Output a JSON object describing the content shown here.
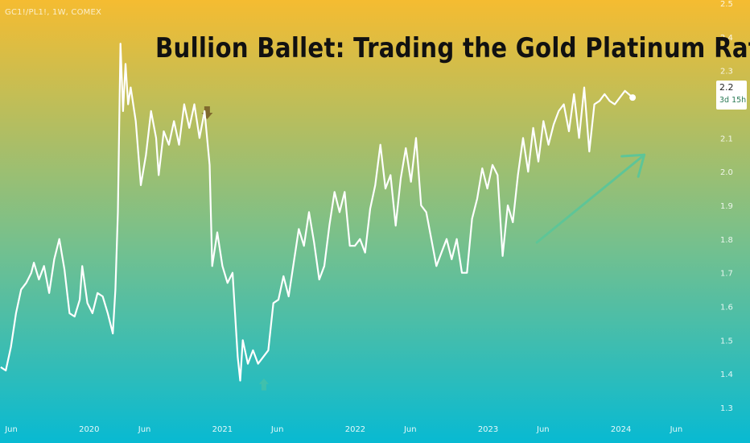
{
  "symbol": "GC1!/PL1!, 1W, COMEX",
  "title": "Bullion Ballet: Trading the Gold Platinum Ratio",
  "price_label": {
    "value": "2.2",
    "countdown": "3d 15h"
  },
  "colors": {
    "bg_top": "#f5bc31",
    "bg_mid": "#76c08d",
    "bg_bottom": "#08bad2",
    "line": "#ffffff",
    "arrow_up": "#5ec597",
    "arrow_down_marker": "#806a2e",
    "arrow_up_marker": "#5ec597"
  },
  "chart_data": {
    "type": "line",
    "title": "Bullion Ballet: Trading the Gold Platinum Ratio",
    "xlabel": "",
    "ylabel": "",
    "ylim": [
      1.3,
      2.5
    ],
    "yticks": [
      1.3,
      1.4,
      1.5,
      1.6,
      1.7,
      1.8,
      1.9,
      2.0,
      2.1,
      2.2,
      2.3,
      2.4,
      2.5
    ],
    "ytick_labels": [
      "1.3",
      "1.4",
      "1.5",
      "1.6",
      "1.7",
      "1.8",
      "1.9",
      "2.0",
      "2.1",
      "2.2",
      "2.3",
      "2.4",
      "2.5"
    ],
    "xlim": [
      "2019-05-01",
      "2024-09-01"
    ],
    "xticks": [
      {
        "date": "2019-06-01",
        "label": "Jun"
      },
      {
        "date": "2020-01-01",
        "label": "2020"
      },
      {
        "date": "2020-06-01",
        "label": "Jun"
      },
      {
        "date": "2021-01-01",
        "label": "2021"
      },
      {
        "date": "2021-06-01",
        "label": "Jun"
      },
      {
        "date": "2022-01-01",
        "label": "2022"
      },
      {
        "date": "2022-06-01",
        "label": "Jun"
      },
      {
        "date": "2023-01-01",
        "label": "2023"
      },
      {
        "date": "2023-06-01",
        "label": "Jun"
      },
      {
        "date": "2024-01-01",
        "label": "2024"
      },
      {
        "date": "2024-06-01",
        "label": "Jun"
      }
    ],
    "grid": false,
    "series": [
      {
        "name": "",
        "points": [
          [
            "2019-05-03",
            1.42
          ],
          [
            "2019-05-17",
            1.41
          ],
          [
            "2019-05-31",
            1.48
          ],
          [
            "2019-06-14",
            1.58
          ],
          [
            "2019-06-28",
            1.65
          ],
          [
            "2019-07-12",
            1.67
          ],
          [
            "2019-07-26",
            1.7
          ],
          [
            "2019-08-02",
            1.73
          ],
          [
            "2019-08-16",
            1.68
          ],
          [
            "2019-08-30",
            1.72
          ],
          [
            "2019-09-13",
            1.64
          ],
          [
            "2019-09-27",
            1.74
          ],
          [
            "2019-10-11",
            1.8
          ],
          [
            "2019-10-25",
            1.71
          ],
          [
            "2019-11-08",
            1.58
          ],
          [
            "2019-11-22",
            1.57
          ],
          [
            "2019-12-06",
            1.62
          ],
          [
            "2019-12-13",
            1.72
          ],
          [
            "2019-12-27",
            1.61
          ],
          [
            "2020-01-10",
            1.58
          ],
          [
            "2020-01-24",
            1.64
          ],
          [
            "2020-02-07",
            1.63
          ],
          [
            "2020-02-21",
            1.58
          ],
          [
            "2020-03-06",
            1.52
          ],
          [
            "2020-03-13",
            1.65
          ],
          [
            "2020-03-20",
            1.88
          ],
          [
            "2020-03-27",
            2.38
          ],
          [
            "2020-04-03",
            2.18
          ],
          [
            "2020-04-10",
            2.32
          ],
          [
            "2020-04-17",
            2.2
          ],
          [
            "2020-04-24",
            2.25
          ],
          [
            "2020-05-08",
            2.15
          ],
          [
            "2020-05-22",
            1.96
          ],
          [
            "2020-06-05",
            2.05
          ],
          [
            "2020-06-19",
            2.18
          ],
          [
            "2020-07-03",
            2.1
          ],
          [
            "2020-07-10",
            1.99
          ],
          [
            "2020-07-24",
            2.12
          ],
          [
            "2020-08-07",
            2.08
          ],
          [
            "2020-08-21",
            2.15
          ],
          [
            "2020-09-04",
            2.08
          ],
          [
            "2020-09-18",
            2.2
          ],
          [
            "2020-10-02",
            2.13
          ],
          [
            "2020-10-16",
            2.2
          ],
          [
            "2020-10-30",
            2.1
          ],
          [
            "2020-11-13",
            2.18
          ],
          [
            "2020-11-27",
            2.02
          ],
          [
            "2020-12-04",
            1.72
          ],
          [
            "2020-12-18",
            1.82
          ],
          [
            "2021-01-01",
            1.72
          ],
          [
            "2021-01-15",
            1.67
          ],
          [
            "2021-01-29",
            1.7
          ],
          [
            "2021-02-12",
            1.45
          ],
          [
            "2021-02-19",
            1.38
          ],
          [
            "2021-02-26",
            1.5
          ],
          [
            "2021-03-12",
            1.43
          ],
          [
            "2021-03-26",
            1.47
          ],
          [
            "2021-04-09",
            1.43
          ],
          [
            "2021-04-23",
            1.45
          ],
          [
            "2021-05-07",
            1.47
          ],
          [
            "2021-05-21",
            1.61
          ],
          [
            "2021-06-04",
            1.62
          ],
          [
            "2021-06-18",
            1.69
          ],
          [
            "2021-07-02",
            1.63
          ],
          [
            "2021-07-16",
            1.73
          ],
          [
            "2021-07-30",
            1.83
          ],
          [
            "2021-08-13",
            1.78
          ],
          [
            "2021-08-27",
            1.88
          ],
          [
            "2021-09-10",
            1.79
          ],
          [
            "2021-09-24",
            1.68
          ],
          [
            "2021-10-08",
            1.72
          ],
          [
            "2021-10-22",
            1.84
          ],
          [
            "2021-11-05",
            1.94
          ],
          [
            "2021-11-19",
            1.88
          ],
          [
            "2021-12-03",
            1.94
          ],
          [
            "2021-12-17",
            1.78
          ],
          [
            "2021-12-31",
            1.78
          ],
          [
            "2022-01-14",
            1.8
          ],
          [
            "2022-01-28",
            1.76
          ],
          [
            "2022-02-11",
            1.89
          ],
          [
            "2022-02-25",
            1.96
          ],
          [
            "2022-03-11",
            2.08
          ],
          [
            "2022-03-25",
            1.95
          ],
          [
            "2022-04-08",
            1.99
          ],
          [
            "2022-04-22",
            1.84
          ],
          [
            "2022-05-06",
            1.98
          ],
          [
            "2022-05-20",
            2.07
          ],
          [
            "2022-06-03",
            1.97
          ],
          [
            "2022-06-17",
            2.1
          ],
          [
            "2022-07-01",
            1.9
          ],
          [
            "2022-07-15",
            1.88
          ],
          [
            "2022-07-29",
            1.8
          ],
          [
            "2022-08-12",
            1.72
          ],
          [
            "2022-08-26",
            1.76
          ],
          [
            "2022-09-09",
            1.8
          ],
          [
            "2022-09-23",
            1.74
          ],
          [
            "2022-10-07",
            1.8
          ],
          [
            "2022-10-21",
            1.7
          ],
          [
            "2022-11-04",
            1.7
          ],
          [
            "2022-11-18",
            1.86
          ],
          [
            "2022-12-02",
            1.92
          ],
          [
            "2022-12-16",
            2.01
          ],
          [
            "2022-12-30",
            1.95
          ],
          [
            "2023-01-13",
            2.02
          ],
          [
            "2023-01-27",
            1.99
          ],
          [
            "2023-02-10",
            1.75
          ],
          [
            "2023-02-24",
            1.9
          ],
          [
            "2023-03-10",
            1.85
          ],
          [
            "2023-03-24",
            1.99
          ],
          [
            "2023-04-07",
            2.1
          ],
          [
            "2023-04-21",
            2.0
          ],
          [
            "2023-05-05",
            2.13
          ],
          [
            "2023-05-19",
            2.03
          ],
          [
            "2023-06-02",
            2.15
          ],
          [
            "2023-06-16",
            2.08
          ],
          [
            "2023-06-30",
            2.14
          ],
          [
            "2023-07-14",
            2.18
          ],
          [
            "2023-07-28",
            2.2
          ],
          [
            "2023-08-11",
            2.12
          ],
          [
            "2023-08-25",
            2.23
          ],
          [
            "2023-09-08",
            2.1
          ],
          [
            "2023-09-22",
            2.25
          ],
          [
            "2023-10-06",
            2.06
          ],
          [
            "2023-10-20",
            2.2
          ],
          [
            "2023-11-03",
            2.21
          ],
          [
            "2023-11-17",
            2.23
          ],
          [
            "2023-12-01",
            2.21
          ],
          [
            "2023-12-15",
            2.2
          ],
          [
            "2023-12-29",
            2.22
          ],
          [
            "2024-01-12",
            2.24
          ],
          [
            "2024-02-02",
            2.22
          ]
        ]
      }
    ],
    "annotations": [
      {
        "type": "arrow-down-marker",
        "date": "2020-11-20",
        "value": 2.17
      },
      {
        "type": "arrow-up-marker",
        "date": "2021-04-25",
        "value": 1.37
      },
      {
        "type": "arrow-trend",
        "from": {
          "date": "2023-05-15",
          "value": 1.79
        },
        "to": {
          "date": "2024-03-05",
          "value": 2.05
        }
      }
    ]
  }
}
